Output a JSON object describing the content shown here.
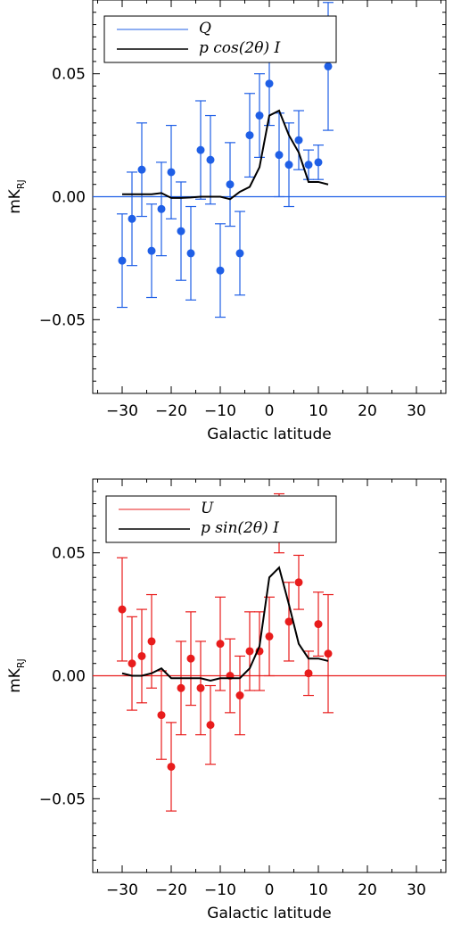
{
  "chart_data": [
    {
      "type": "scatter",
      "xlabel": "Galactic latitude",
      "ylabel": "mK",
      "ylabel_sub": "RJ",
      "xlim": [
        -36,
        36
      ],
      "ylim": [
        -0.08,
        0.08
      ],
      "xticks": [
        -30,
        -20,
        -10,
        0,
        10,
        20,
        30
      ],
      "xtick_labels": [
        "−30",
        "−20",
        "−10",
        "0",
        "10",
        "20",
        "30"
      ],
      "yticks": [
        -0.05,
        0.0,
        0.05
      ],
      "ytick_labels": [
        "−0.05",
        "0.00",
        "0.05"
      ],
      "zero_line": true,
      "legend_position": "top-left",
      "color": "#1f5fe6",
      "series": [
        {
          "name": "Q",
          "kind": "points-with-errorbars",
          "x": [
            -30,
            -28,
            -26,
            -24,
            -22,
            -20,
            -18,
            -16,
            -14,
            -12,
            -10,
            -8,
            -6,
            -4,
            -2,
            0,
            2,
            4,
            6,
            8,
            10,
            12
          ],
          "y": [
            -0.026,
            -0.009,
            0.011,
            -0.022,
            -0.005,
            0.01,
            -0.014,
            -0.023,
            0.019,
            0.015,
            -0.03,
            0.005,
            -0.023,
            0.025,
            0.033,
            0.046,
            0.017,
            0.013,
            0.023,
            0.013,
            0.014,
            0.053
          ],
          "err": [
            0.019,
            0.019,
            0.019,
            0.019,
            0.019,
            0.019,
            0.02,
            0.019,
            0.02,
            0.018,
            0.019,
            0.017,
            0.017,
            0.017,
            0.017,
            0.017,
            0.017,
            0.017,
            0.012,
            0.006,
            0.007,
            0.026
          ]
        },
        {
          "name": "p cos(2θ) I",
          "kind": "line",
          "x": [
            -30,
            -28,
            -26,
            -24,
            -22,
            -20,
            -18,
            -16,
            -14,
            -12,
            -10,
            -8,
            -6,
            -4,
            -2,
            0,
            2,
            4,
            6,
            8,
            10,
            12
          ],
          "y": [
            0.001,
            0.001,
            0.001,
            0.001,
            0.0015,
            -0.0005,
            -0.0005,
            -0.0003,
            0.0,
            0.0,
            0.0,
            -0.001,
            0.002,
            0.004,
            0.012,
            0.033,
            0.035,
            0.025,
            0.018,
            0.006,
            0.006,
            0.005
          ]
        }
      ]
    },
    {
      "type": "scatter",
      "xlabel": "Galactic latitude",
      "ylabel": "mK",
      "ylabel_sub": "RJ",
      "xlim": [
        -36,
        36
      ],
      "ylim": [
        -0.08,
        0.08
      ],
      "xticks": [
        -30,
        -20,
        -10,
        0,
        10,
        20,
        30
      ],
      "xtick_labels": [
        "−30",
        "−20",
        "−10",
        "0",
        "10",
        "20",
        "30"
      ],
      "yticks": [
        -0.05,
        0.0,
        0.05
      ],
      "ytick_labels": [
        "−0.05",
        "0.00",
        "0.05"
      ],
      "zero_line": true,
      "legend_position": "top-left",
      "color": "#e81c1c",
      "series": [
        {
          "name": "U",
          "kind": "points-with-errorbars",
          "x": [
            -30,
            -28,
            -26,
            -24,
            -22,
            -20,
            -18,
            -16,
            -14,
            -12,
            -10,
            -8,
            -6,
            -4,
            -2,
            0,
            2,
            4,
            6,
            8,
            10,
            12
          ],
          "y": [
            0.027,
            0.005,
            0.008,
            0.014,
            -0.016,
            -0.037,
            -0.005,
            0.007,
            -0.005,
            -0.02,
            0.013,
            0.0,
            -0.008,
            0.01,
            0.01,
            0.016,
            0.062,
            0.022,
            0.038,
            0.001,
            0.021,
            0.009
          ],
          "err": [
            0.021,
            0.019,
            0.019,
            0.019,
            0.018,
            0.018,
            0.019,
            0.019,
            0.019,
            0.016,
            0.019,
            0.015,
            0.016,
            0.016,
            0.016,
            0.016,
            0.012,
            0.016,
            0.011,
            0.009,
            0.013,
            0.024
          ]
        },
        {
          "name": "p sin(2θ) I",
          "kind": "line",
          "x": [
            -30,
            -28,
            -26,
            -24,
            -22,
            -20,
            -18,
            -16,
            -14,
            -12,
            -10,
            -8,
            -6,
            -4,
            -2,
            0,
            2,
            4,
            6,
            8,
            10,
            12
          ],
          "y": [
            0.001,
            0.0,
            0.0,
            0.001,
            0.003,
            -0.001,
            -0.001,
            -0.001,
            -0.001,
            -0.002,
            -0.001,
            -0.001,
            -0.001,
            0.003,
            0.012,
            0.04,
            0.044,
            0.029,
            0.013,
            0.007,
            0.007,
            0.006
          ]
        }
      ]
    }
  ]
}
